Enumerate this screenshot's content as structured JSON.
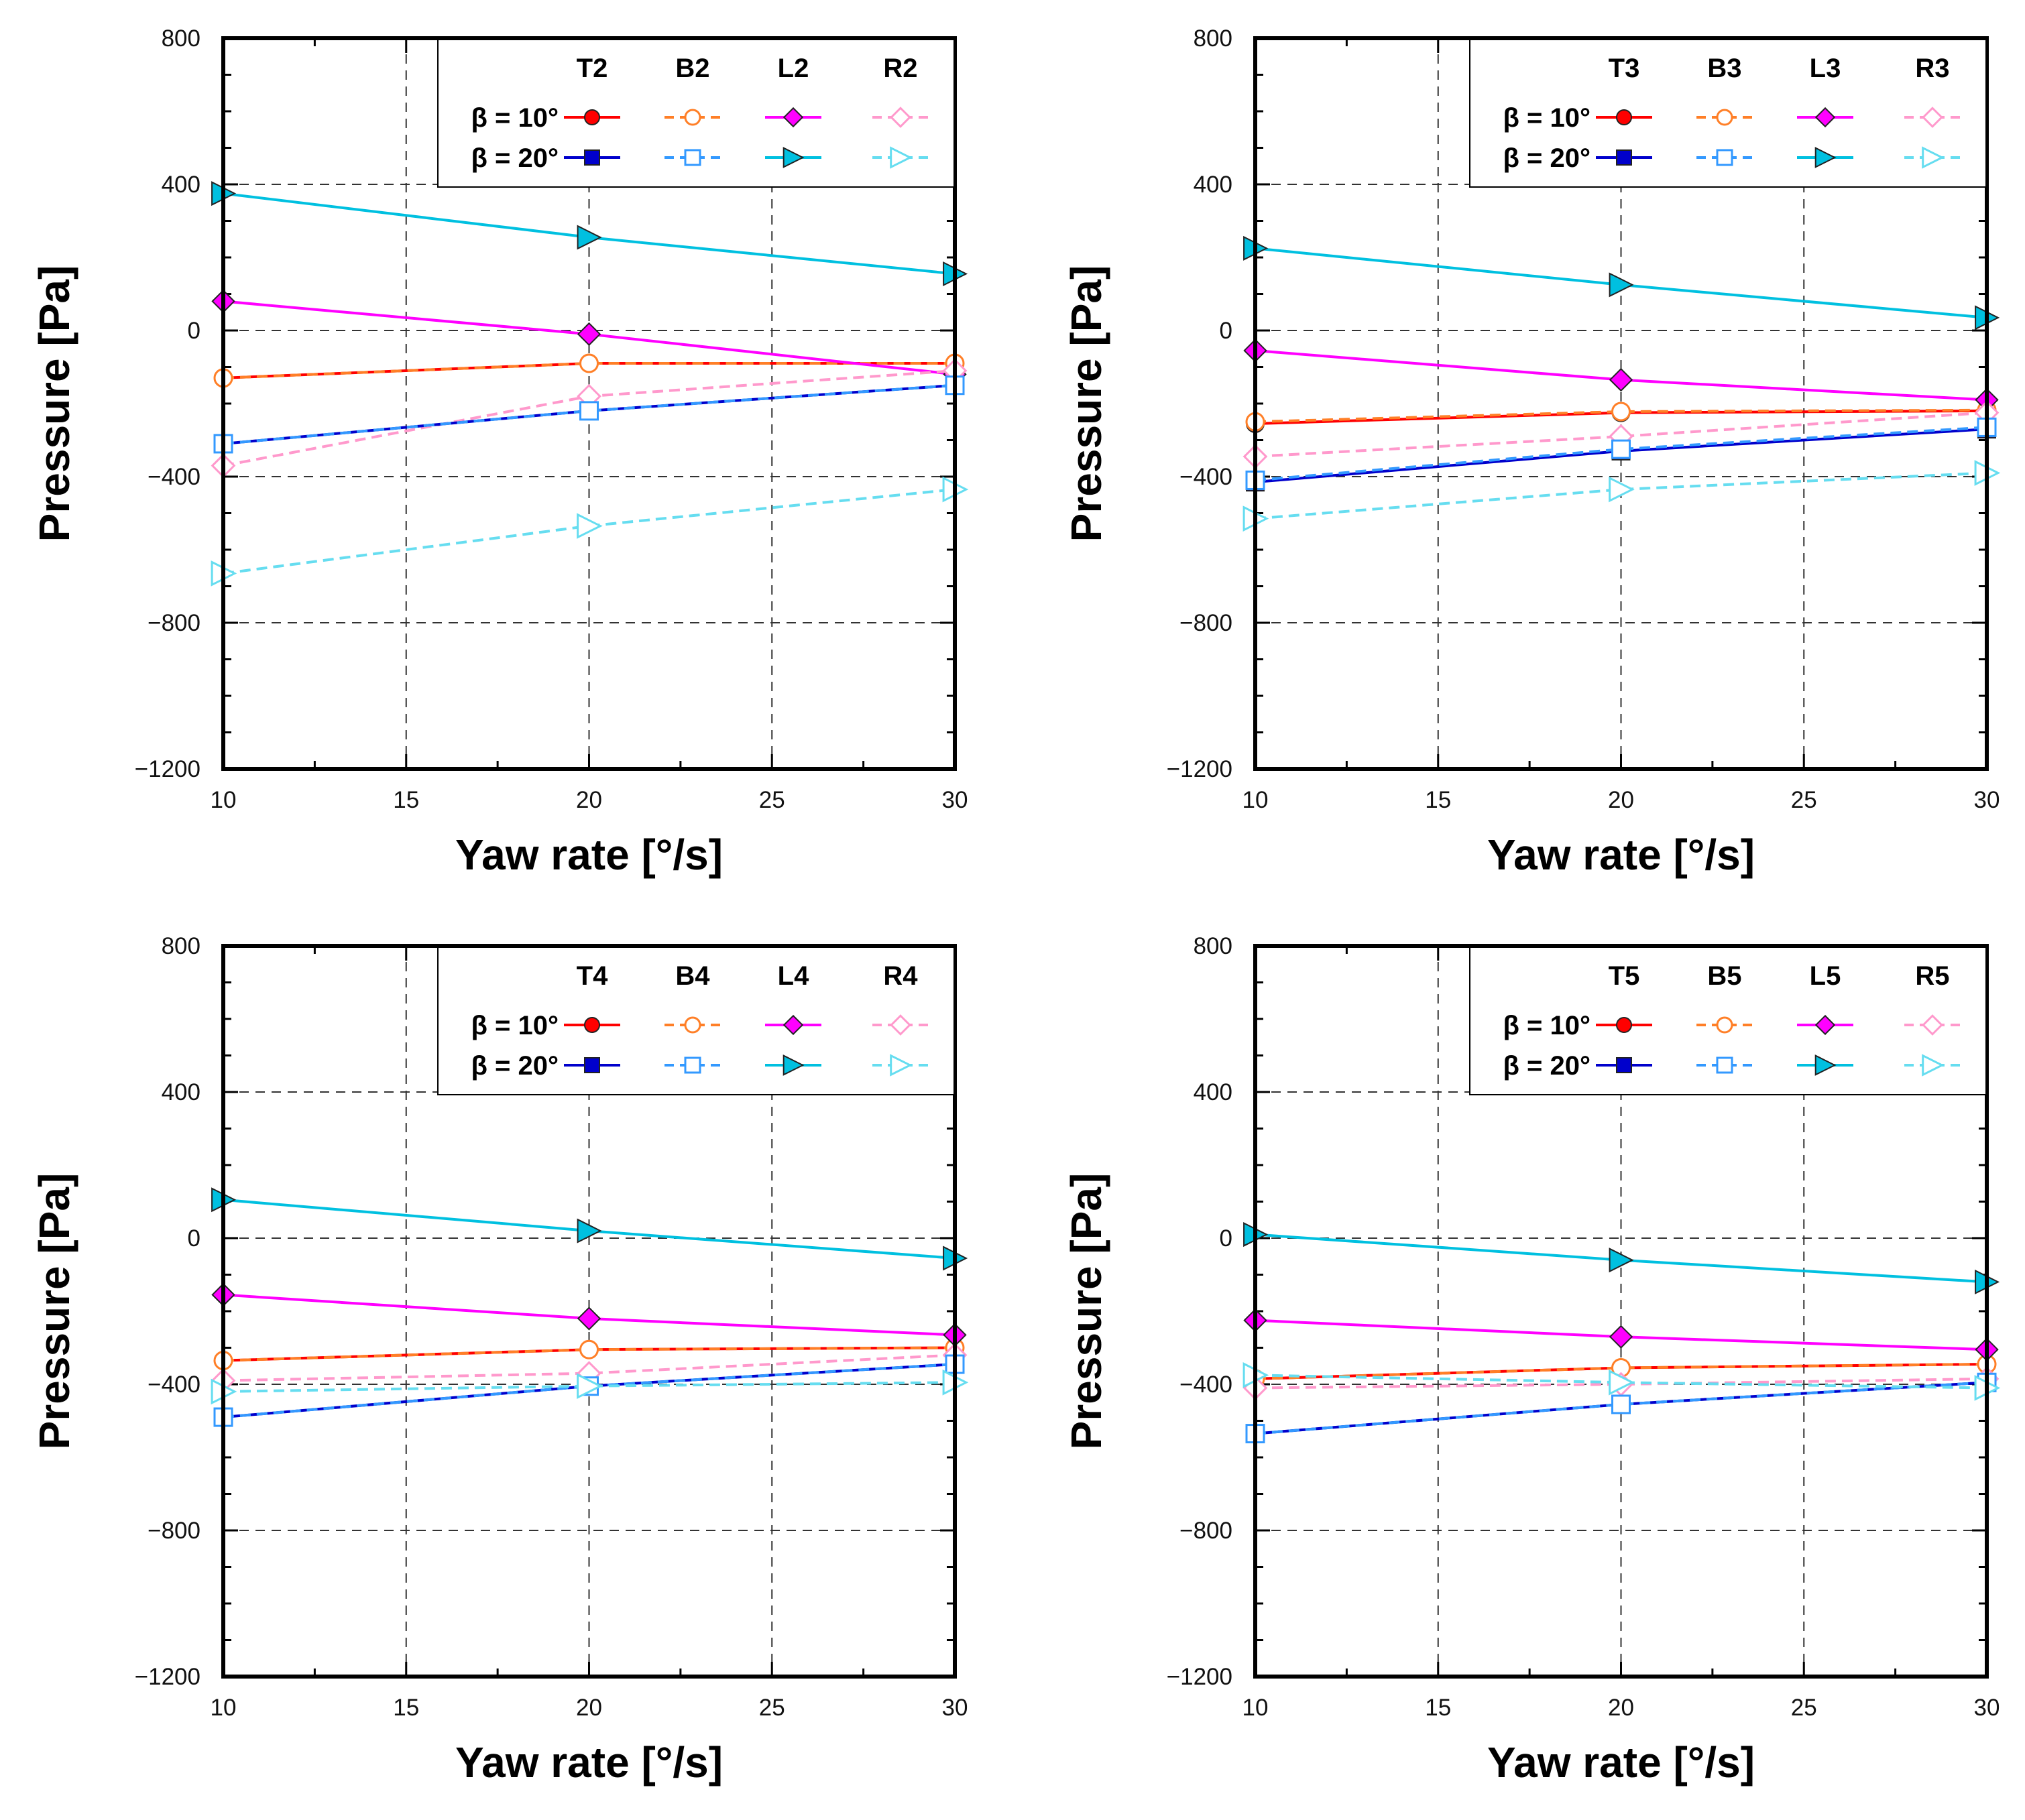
{
  "figure": {
    "legend_row_labels": [
      "β = 10°",
      "β = 20°"
    ],
    "series_styles": {
      "T": {
        "color": "#ff0000",
        "marker": "circle",
        "filled": true,
        "dashed": false
      },
      "B": {
        "color": "#ff7f27",
        "marker": "circle",
        "filled": false,
        "dashed": true
      },
      "L": {
        "color": "#ff00ff",
        "marker": "diamond",
        "filled": true,
        "dashed": false
      },
      "R": {
        "color": "#ff99cc",
        "marker": "diamond",
        "filled": false,
        "dashed": true
      },
      "T20": {
        "color": "#0000cc",
        "marker": "square",
        "filled": true,
        "dashed": false
      },
      "B20": {
        "color": "#3399ff",
        "marker": "square",
        "filled": false,
        "dashed": true
      },
      "L20": {
        "color": "#00c0e0",
        "marker": "triangle",
        "filled": true,
        "dashed": false
      },
      "R20": {
        "color": "#66ddf0",
        "marker": "triangle",
        "filled": false,
        "dashed": true
      }
    }
  },
  "chart_data": [
    {
      "type": "line",
      "xlabel": "Yaw rate [°/s]",
      "ylabel": "Pressure [Pa]",
      "xlim": [
        10,
        30
      ],
      "ylim": [
        -1200,
        800
      ],
      "xticks": [
        10,
        15,
        20,
        25,
        30
      ],
      "yticks": [
        -1200,
        -800,
        -400,
        0,
        400,
        800
      ],
      "legend_columns": [
        "T2",
        "B2",
        "L2",
        "R2"
      ],
      "x": [
        10,
        20,
        30
      ],
      "series": [
        {
          "name": "T2 β = 10°",
          "style": "T",
          "values": [
            -130,
            -90,
            -90
          ]
        },
        {
          "name": "B2 β = 10°",
          "style": "B",
          "values": [
            -130,
            -90,
            -90
          ]
        },
        {
          "name": "L2 β = 10°",
          "style": "L",
          "values": [
            80,
            -10,
            -120
          ]
        },
        {
          "name": "R2 β = 10°",
          "style": "R",
          "values": [
            -370,
            -180,
            -110
          ]
        },
        {
          "name": "T2 β = 20°",
          "style": "T20",
          "values": [
            -310,
            -220,
            -150
          ]
        },
        {
          "name": "B2 β = 20°",
          "style": "B20",
          "values": [
            -310,
            -220,
            -150
          ]
        },
        {
          "name": "L2 β = 20°",
          "style": "L20",
          "values": [
            375,
            255,
            155
          ]
        },
        {
          "name": "R2 β = 20°",
          "style": "R20",
          "values": [
            -665,
            -535,
            -435
          ]
        }
      ]
    },
    {
      "type": "line",
      "xlabel": "Yaw rate [°/s]",
      "ylabel": "Pressure [Pa]",
      "xlim": [
        10,
        30
      ],
      "ylim": [
        -1200,
        800
      ],
      "xticks": [
        10,
        15,
        20,
        25,
        30
      ],
      "yticks": [
        -1200,
        -800,
        -400,
        0,
        400,
        800
      ],
      "legend_columns": [
        "T3",
        "B3",
        "L3",
        "R3"
      ],
      "x": [
        10,
        20,
        30
      ],
      "series": [
        {
          "name": "T3 β = 10°",
          "style": "T",
          "values": [
            -255,
            -225,
            -220
          ]
        },
        {
          "name": "B3 β = 10°",
          "style": "B",
          "values": [
            -250,
            -222,
            -218
          ]
        },
        {
          "name": "L3 β = 10°",
          "style": "L",
          "values": [
            -55,
            -135,
            -190
          ]
        },
        {
          "name": "R3 β = 10°",
          "style": "R",
          "values": [
            -345,
            -290,
            -225
          ]
        },
        {
          "name": "T3 β = 20°",
          "style": "T20",
          "values": [
            -415,
            -330,
            -270
          ]
        },
        {
          "name": "B3 β = 20°",
          "style": "B20",
          "values": [
            -410,
            -325,
            -265
          ]
        },
        {
          "name": "L3 β = 20°",
          "style": "L20",
          "values": [
            225,
            125,
            35
          ]
        },
        {
          "name": "R3 β = 20°",
          "style": "R20",
          "values": [
            -515,
            -435,
            -390
          ]
        }
      ]
    },
    {
      "type": "line",
      "xlabel": "Yaw rate [°/s]",
      "ylabel": "Pressure [Pa]",
      "xlim": [
        10,
        30
      ],
      "ylim": [
        -1200,
        800
      ],
      "xticks": [
        10,
        15,
        20,
        25,
        30
      ],
      "yticks": [
        -1200,
        -800,
        -400,
        0,
        400,
        800
      ],
      "legend_columns": [
        "T4",
        "B4",
        "L4",
        "R4"
      ],
      "x": [
        10,
        20,
        30
      ],
      "series": [
        {
          "name": "T4 β = 10°",
          "style": "T",
          "values": [
            -335,
            -305,
            -300
          ]
        },
        {
          "name": "B4 β = 10°",
          "style": "B",
          "values": [
            -335,
            -305,
            -300
          ]
        },
        {
          "name": "L4 β = 10°",
          "style": "L",
          "values": [
            -155,
            -220,
            -265
          ]
        },
        {
          "name": "R4 β = 10°",
          "style": "R",
          "values": [
            -390,
            -370,
            -320
          ]
        },
        {
          "name": "T4 β = 20°",
          "style": "T20",
          "values": [
            -490,
            -405,
            -345
          ]
        },
        {
          "name": "B4 β = 20°",
          "style": "B20",
          "values": [
            -490,
            -405,
            -345
          ]
        },
        {
          "name": "L4 β = 20°",
          "style": "L20",
          "values": [
            105,
            20,
            -55
          ]
        },
        {
          "name": "R4 β = 20°",
          "style": "R20",
          "values": [
            -420,
            -405,
            -395
          ]
        }
      ]
    },
    {
      "type": "line",
      "xlabel": "Yaw rate [°/s]",
      "ylabel": "Pressure [Pa]",
      "xlim": [
        10,
        30
      ],
      "ylim": [
        -1200,
        800
      ],
      "xticks": [
        10,
        15,
        20,
        25,
        30
      ],
      "yticks": [
        -1200,
        -800,
        -400,
        0,
        400,
        800
      ],
      "legend_columns": [
        "T5",
        "B5",
        "L5",
        "R5"
      ],
      "x": [
        10,
        20,
        30
      ],
      "series": [
        {
          "name": "T5 β = 10°",
          "style": "T",
          "values": [
            -385,
            -355,
            -345
          ]
        },
        {
          "name": "B5 β = 10°",
          "style": "B",
          "values": [
            -385,
            -355,
            -345
          ]
        },
        {
          "name": "L5 β = 10°",
          "style": "L",
          "values": [
            -225,
            -270,
            -305
          ]
        },
        {
          "name": "R5 β = 10°",
          "style": "R",
          "values": [
            -410,
            -400,
            -385
          ]
        },
        {
          "name": "T5 β = 20°",
          "style": "T20",
          "values": [
            -535,
            -455,
            -395
          ]
        },
        {
          "name": "B5 β = 20°",
          "style": "B20",
          "values": [
            -535,
            -455,
            -395
          ]
        },
        {
          "name": "L5 β = 20°",
          "style": "L20",
          "values": [
            10,
            -60,
            -120
          ]
        },
        {
          "name": "R5 β = 20°",
          "style": "R20",
          "values": [
            -375,
            -395,
            -410
          ]
        }
      ]
    }
  ]
}
